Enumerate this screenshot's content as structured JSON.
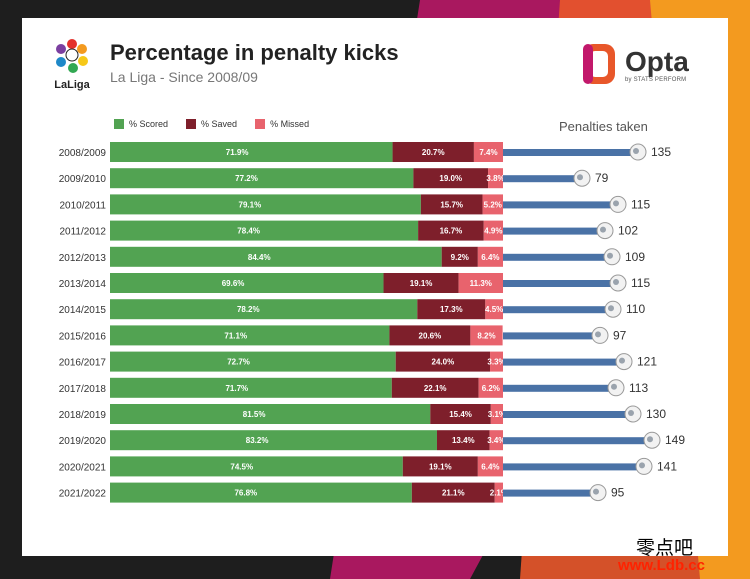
{
  "header": {
    "title": "Percentage in penalty kicks",
    "subtitle": "La Liga - Since 2008/09",
    "laliga_logo_text": "LaLiga",
    "opta_brand": "Opta",
    "opta_sub": "by STATS PERFORM"
  },
  "legend": {
    "scored": "% Scored",
    "saved": "% Saved",
    "missed": "% Missed",
    "penalties_header": "Penalties taken"
  },
  "colors": {
    "scored": "#52a352",
    "saved": "#7e1f2b",
    "missed": "#e8636d",
    "penalties": "#4a72a6"
  },
  "chart_data": {
    "type": "bar",
    "title": "Percentage in penalty kicks",
    "subtitle": "La Liga - Since 2008/09",
    "categories": [
      "2008/2009",
      "2009/2010",
      "2010/2011",
      "2011/2012",
      "2012/2013",
      "2013/2014",
      "2014/2015",
      "2015/2016",
      "2016/2017",
      "2017/2018",
      "2018/2019",
      "2019/2020",
      "2020/2021",
      "2021/2022"
    ],
    "series": [
      {
        "name": "% Scored",
        "values": [
          71.9,
          77.2,
          79.1,
          78.4,
          84.4,
          69.6,
          78.2,
          71.1,
          72.7,
          71.7,
          81.5,
          83.2,
          74.5,
          76.8
        ],
        "labels": [
          "71.9%",
          "77.2%",
          "79.1%",
          "78.4%",
          "84.4%",
          "69.6%",
          "78.2%",
          "71.1%",
          "72.7%",
          "71.7%",
          "81.5%",
          "83.2%",
          "74.5%",
          "76.8%"
        ]
      },
      {
        "name": "% Saved",
        "values": [
          20.7,
          19.0,
          15.7,
          16.7,
          9.2,
          19.1,
          17.3,
          20.6,
          24.0,
          22.1,
          15.4,
          13.4,
          19.1,
          21.1
        ],
        "labels": [
          "20.7%",
          "19.0%",
          "15.7%",
          "16.7%",
          "9.2%",
          "19.1%",
          "17.3%",
          "20.6%",
          "24.0%",
          "22.1%",
          "15.4%",
          "13.4%",
          "19.1%",
          "21.1%"
        ]
      },
      {
        "name": "% Missed",
        "values": [
          7.4,
          3.8,
          5.2,
          4.9,
          6.4,
          11.3,
          4.5,
          8.2,
          3.3,
          6.2,
          3.1,
          3.4,
          6.4,
          2.1
        ],
        "labels": [
          "7.4%",
          "3.8%",
          "5.2%",
          "4.9%",
          "6.4%",
          "11.3%",
          "4.5%",
          "8.2%",
          "3.3%",
          "6.2%",
          "3.1%",
          "3.4%",
          "6.4%",
          "2.1%"
        ]
      }
    ],
    "penalties_taken": {
      "name": "Penalties taken",
      "values": [
        135,
        79,
        115,
        102,
        109,
        115,
        110,
        97,
        121,
        113,
        130,
        149,
        141,
        95
      ]
    },
    "stacked": true,
    "xlim": [
      0,
      100
    ]
  },
  "watermark": {
    "cn_text": "零点吧",
    "url": "www.Ldb.cc"
  }
}
